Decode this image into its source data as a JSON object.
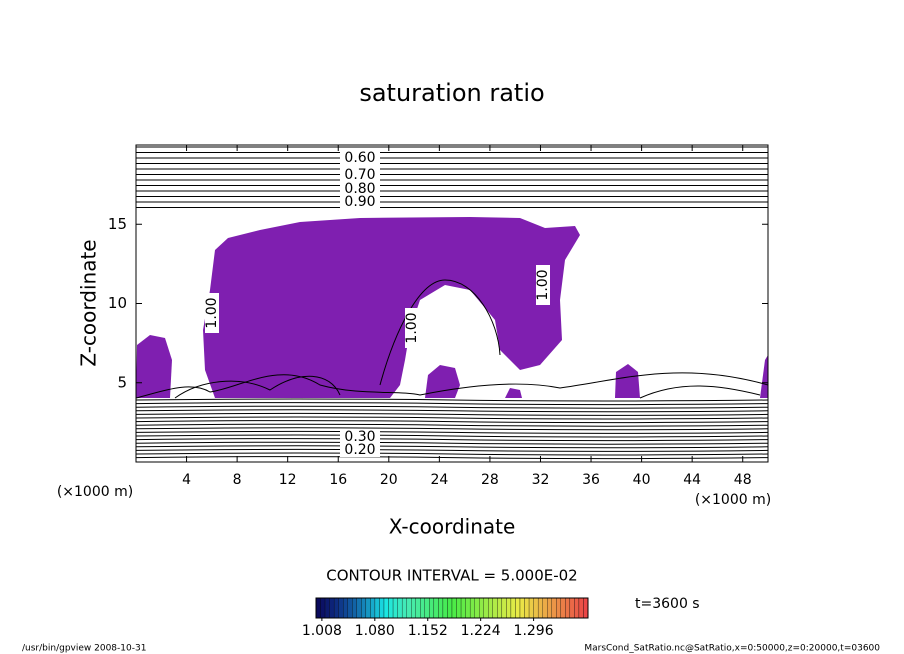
{
  "chart_data": {
    "type": "contour",
    "title": "saturation ratio",
    "x_label": "X-coordinate",
    "y_label": "Z-coordinate",
    "x_unit": "(×1000 m)",
    "y_unit": "(×1000 m)",
    "xlim": [
      0,
      50
    ],
    "xticks": [
      4,
      8,
      12,
      16,
      20,
      24,
      28,
      32,
      36,
      40,
      44,
      48
    ],
    "ylim": [
      0,
      20
    ],
    "yticks": [
      5,
      10,
      15
    ],
    "fill_color": "#7f1fb0",
    "contour_labels": [
      {
        "value": 0.6,
        "label": "0.60"
      },
      {
        "value": 0.7,
        "label": "0.70"
      },
      {
        "value": 0.8,
        "label": "0.80"
      },
      {
        "value": 0.9,
        "label": "0.90"
      },
      {
        "value": 1.0,
        "label": "1.00"
      },
      {
        "value": 1.0,
        "label": "1.00"
      },
      {
        "value": 1.0,
        "label": "1.00"
      },
      {
        "value": 0.3,
        "label": "0.30"
      },
      {
        "value": 0.2,
        "label": "0.20"
      }
    ],
    "contour_interval_label": "CONTOUR INTERVAL = 5.000E-02",
    "colorbar": {
      "lim": [
        1.0,
        1.37
      ],
      "ticks": [
        1.008,
        {
          "value": 1.08,
          "label": "1.080"
        },
        1.152,
        1.224,
        1.296
      ]
    },
    "time_label": "t=3600 s",
    "footer_left": "/usr/bin/gpview  2008-10-31",
    "footer_right": "MarsCond_SatRatio.nc@SatRatio,x=0:50000,z=0:20000,t=03600"
  }
}
